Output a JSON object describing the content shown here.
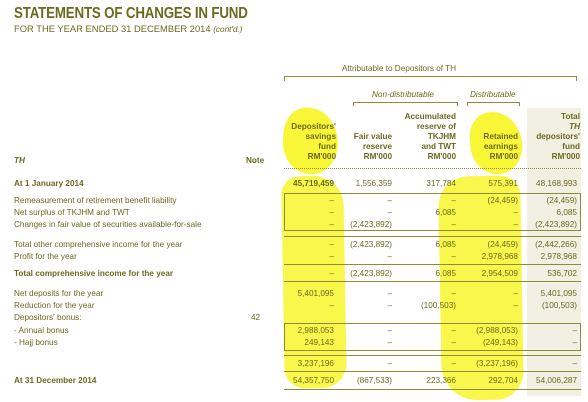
{
  "title": "STATEMENTS OF CHANGES IN FUND",
  "subtitle": "FOR THE YEAR ENDED 31 DECEMBER 2014",
  "subtitle_suffix": "(cont'd.)",
  "colors": {
    "text": "#6b6a1f",
    "rule": "#8e8b3a",
    "shade": "#f2efe3",
    "highlight": "#f7f400"
  },
  "group_headers": {
    "attributable": "Attributable to Depositors of TH",
    "non_distributable": "Non-distributable",
    "distributable": "Distributable"
  },
  "row_header_label": "TH",
  "note_header": "Note",
  "columns": [
    {
      "l1": "Depositors'",
      "l2": "savings",
      "l3": "fund",
      "unit": "RM'000"
    },
    {
      "l1": "",
      "l2": "Fair value",
      "l3": "reserve",
      "unit": "RM'000"
    },
    {
      "l0": "Accumulated",
      "l1": "reserve of",
      "l2": "TKJHM",
      "l3": "and TWT",
      "unit": "RM'000"
    },
    {
      "l1": "",
      "l2": "Retained",
      "l3": "earnings",
      "unit": "RM'000"
    },
    {
      "l0": "Total",
      "l1": "TH",
      "l2": "depositors'",
      "l3": "fund",
      "unit": "RM'000"
    }
  ],
  "rows": [
    {
      "label": "At 1 January 2014",
      "bold": true,
      "note": "",
      "values": [
        "45,719,459",
        "1,556,359",
        "317,784",
        "575,391",
        "48,168,993"
      ]
    },
    {
      "label": "Remeasurement of retirement benefit liability",
      "note": "",
      "values": [
        "–",
        "–",
        "–",
        "(24,459)",
        "(24,459)"
      ]
    },
    {
      "label": "Net surplus of TKJHM and TWT",
      "note": "",
      "values": [
        "–",
        "–",
        "6,085",
        "–",
        "6,085"
      ]
    },
    {
      "label": "Changes in fair value of securities available-for-sale",
      "note": "",
      "values": [
        "–",
        "(2,423,892)",
        "–",
        "–",
        "(2,423,892)"
      ]
    },
    {
      "label": "Total other comprehensive income for the year",
      "note": "",
      "values": [
        "–",
        "(2,423,892)",
        "6,085",
        "(24,459)",
        "(2,442,266)"
      ]
    },
    {
      "label": "Profit for the year",
      "note": "",
      "values": [
        "–",
        "–",
        "–",
        "2,978,968",
        "2,978,968"
      ]
    },
    {
      "label": "Total comprehensive income for the year",
      "bold": true,
      "note": "",
      "values": [
        "–",
        "(2,423,892)",
        "6,085",
        "2,954,509",
        "536,702"
      ]
    },
    {
      "label": "Net deposits for the year",
      "note": "",
      "values": [
        "5,401,095",
        "–",
        "–",
        "–",
        "5,401,095"
      ]
    },
    {
      "label": "Reduction for the year",
      "note": "",
      "values": [
        "–",
        "–",
        "(100,503)",
        "–",
        "(100,503)"
      ]
    },
    {
      "label": "Depositors' bonus:",
      "note": "42",
      "values": [
        "",
        "",
        "",
        "",
        ""
      ]
    },
    {
      "label": "- Annual bonus",
      "note": "",
      "values": [
        "2,988,053",
        "–",
        "–",
        "(2,988,053)",
        "–"
      ]
    },
    {
      "label": "- Hajj bonus",
      "note": "",
      "values": [
        "249,143",
        "–",
        "–",
        "(249,143)",
        "–"
      ]
    },
    {
      "label": "",
      "note": "",
      "values": [
        "3,237,196",
        "–",
        "–",
        "(3,237,196)",
        "–"
      ]
    },
    {
      "label": "At 31 December 2014",
      "bold": true,
      "note": "",
      "values": [
        "54,357,750",
        "(867,533)",
        "223,366",
        "292,704",
        "54,006,287"
      ]
    }
  ]
}
